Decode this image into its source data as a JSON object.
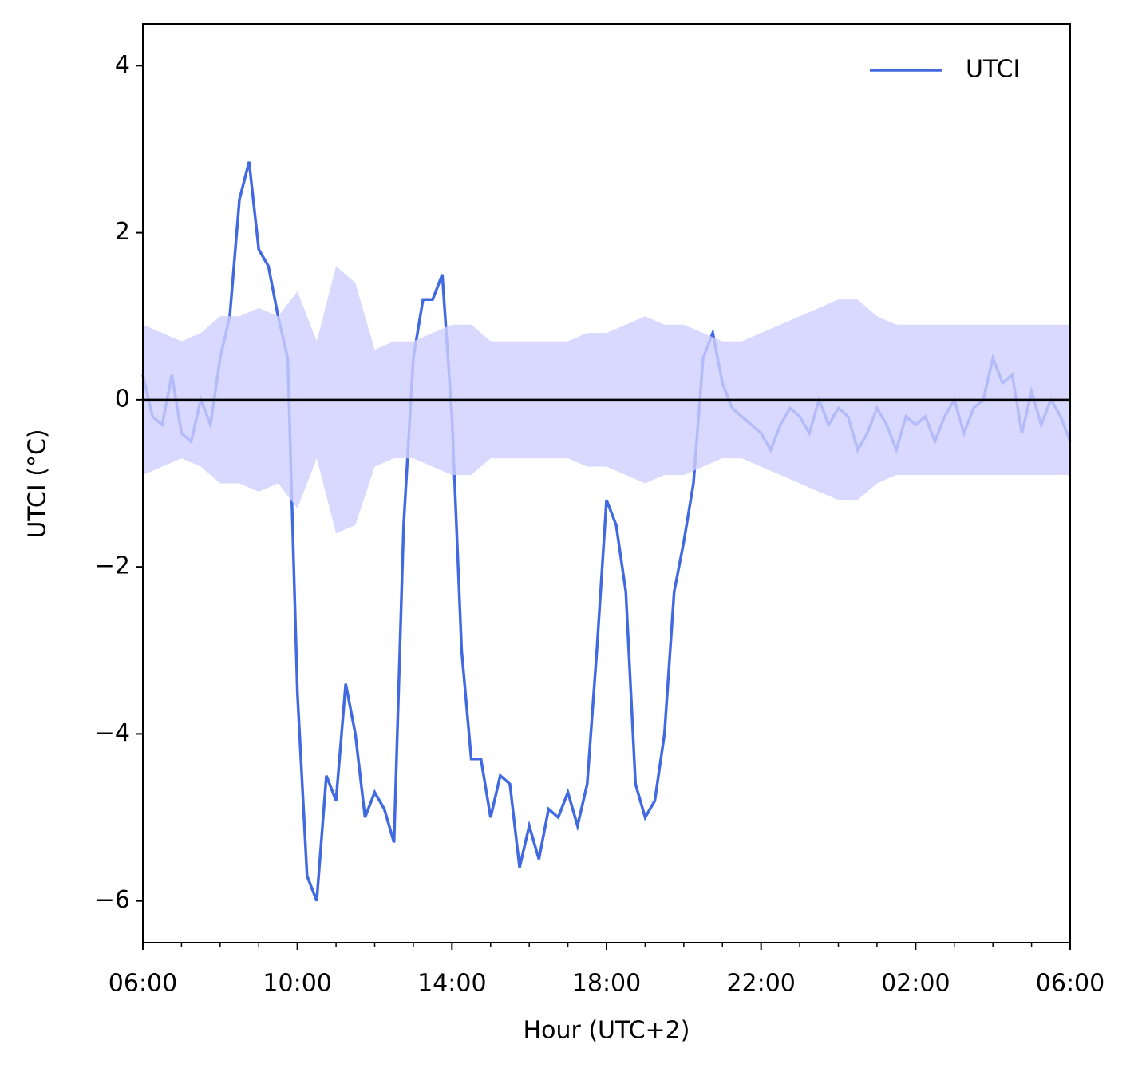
{
  "chart_data": {
    "type": "line",
    "xlabel": "Hour (UTC+2)",
    "ylabel": "UTCI (°C)",
    "xlim": [
      6,
      30
    ],
    "ylim": [
      -6.5,
      4.5
    ],
    "xticks": [
      {
        "value": 6,
        "label": "06:00"
      },
      {
        "value": 10,
        "label": "10:00"
      },
      {
        "value": 14,
        "label": "14:00"
      },
      {
        "value": 18,
        "label": "18:00"
      },
      {
        "value": 22,
        "label": "22:00"
      },
      {
        "value": 26,
        "label": "02:00"
      },
      {
        "value": 30,
        "label": "06:00"
      }
    ],
    "yticks": [
      {
        "value": -6,
        "label": "−6"
      },
      {
        "value": -4,
        "label": "−4"
      },
      {
        "value": -2,
        "label": "−2"
      },
      0,
      2,
      4
    ],
    "reference_line": 0,
    "legend": "upper right",
    "x": [
      6,
      6.25,
      6.5,
      6.75,
      7,
      7.25,
      7.5,
      7.75,
      8,
      8.25,
      8.5,
      8.75,
      9,
      9.25,
      9.5,
      9.75,
      10,
      10.25,
      10.5,
      10.75,
      11,
      11.25,
      11.5,
      11.75,
      12,
      12.25,
      12.5,
      12.75,
      13,
      13.25,
      13.5,
      13.75,
      14,
      14.25,
      14.5,
      14.75,
      15,
      15.25,
      15.5,
      15.75,
      16,
      16.25,
      16.5,
      16.75,
      17,
      17.25,
      17.5,
      17.75,
      18,
      18.25,
      18.5,
      18.75,
      19,
      19.25,
      19.5,
      19.75,
      20,
      20.25,
      20.5,
      20.75,
      21,
      21.25,
      21.5,
      21.75,
      22,
      22.25,
      22.5,
      22.75,
      23,
      23.25,
      23.5,
      23.75,
      24,
      24.25,
      24.5,
      24.75,
      25,
      25.25,
      25.5,
      25.75,
      26,
      26.25,
      26.5,
      26.75,
      27,
      27.25,
      27.5,
      27.75,
      28,
      28.25,
      28.5,
      28.75,
      29,
      29.25,
      29.5,
      29.75,
      30
    ],
    "series": [
      {
        "name": "UTCI",
        "color": "#4169e1",
        "values": [
          0.3,
          -0.2,
          -0.3,
          0.3,
          -0.4,
          -0.5,
          0.0,
          -0.3,
          0.5,
          1.0,
          2.4,
          2.85,
          1.8,
          1.6,
          1.0,
          0.5,
          -3.5,
          -5.7,
          -6.0,
          -4.5,
          -4.8,
          -3.4,
          -4.0,
          -5.0,
          -4.7,
          -4.9,
          -5.3,
          -1.5,
          0.5,
          1.2,
          1.2,
          1.5,
          -0.2,
          -3.0,
          -4.3,
          -4.3,
          -5.0,
          -4.5,
          -4.6,
          -5.6,
          -5.1,
          -5.5,
          -4.9,
          -5.0,
          -4.7,
          -5.1,
          -4.6,
          -3.0,
          -1.2,
          -1.5,
          -2.3,
          -4.6,
          -5.0,
          -4.8,
          -4.0,
          -2.3,
          -1.7,
          -1.0,
          0.5,
          0.8,
          0.2,
          -0.1,
          -0.2,
          -0.3,
          -0.4,
          -0.6,
          -0.3,
          -0.1,
          -0.2,
          -0.4,
          0.0,
          -0.3,
          -0.1,
          -0.2,
          -0.6,
          -0.4,
          -0.1,
          -0.3,
          -0.6,
          -0.2,
          -0.3,
          -0.2,
          -0.5,
          -0.2,
          0.0,
          -0.4,
          -0.1,
          0.0,
          0.5,
          0.2,
          0.3,
          -0.4,
          0.1,
          -0.3,
          0.0,
          -0.2,
          -0.5
        ]
      }
    ],
    "band": {
      "color": "#d0d0ff",
      "x": [
        6,
        6.5,
        7,
        7.5,
        8,
        8.5,
        9,
        9.5,
        10,
        10.5,
        11,
        11.5,
        12,
        12.5,
        13,
        13.5,
        14,
        14.5,
        15,
        15.5,
        16,
        16.5,
        17,
        17.5,
        18,
        18.5,
        19,
        19.5,
        20,
        20.5,
        21,
        21.5,
        22,
        22.5,
        23,
        23.5,
        24,
        24.5,
        25,
        25.5,
        26,
        26.5,
        27,
        27.5,
        28,
        28.5,
        29,
        29.5,
        30
      ],
      "upper": [
        0.9,
        0.8,
        0.7,
        0.8,
        1.0,
        1.0,
        1.1,
        1.0,
        1.3,
        0.7,
        1.6,
        1.4,
        0.6,
        0.7,
        0.7,
        0.8,
        0.9,
        0.9,
        0.7,
        0.7,
        0.7,
        0.7,
        0.7,
        0.8,
        0.8,
        0.9,
        1.0,
        0.9,
        0.9,
        0.8,
        0.7,
        0.7,
        0.8,
        0.9,
        1.0,
        1.1,
        1.2,
        1.2,
        1.0,
        0.9,
        0.9,
        0.9,
        0.9,
        0.9,
        0.9,
        0.9,
        0.9,
        0.9,
        0.9
      ],
      "lower": [
        -0.9,
        -0.8,
        -0.7,
        -0.8,
        -1.0,
        -1.0,
        -1.1,
        -1.0,
        -1.3,
        -0.7,
        -1.6,
        -1.5,
        -0.8,
        -0.7,
        -0.7,
        -0.8,
        -0.9,
        -0.9,
        -0.7,
        -0.7,
        -0.7,
        -0.7,
        -0.7,
        -0.8,
        -0.8,
        -0.9,
        -1.0,
        -0.9,
        -0.9,
        -0.8,
        -0.7,
        -0.7,
        -0.8,
        -0.9,
        -1.0,
        -1.1,
        -1.2,
        -1.2,
        -1.0,
        -0.9,
        -0.9,
        -0.9,
        -0.9,
        -0.9,
        -0.9,
        -0.9,
        -0.9,
        -0.9,
        -0.9
      ]
    }
  }
}
